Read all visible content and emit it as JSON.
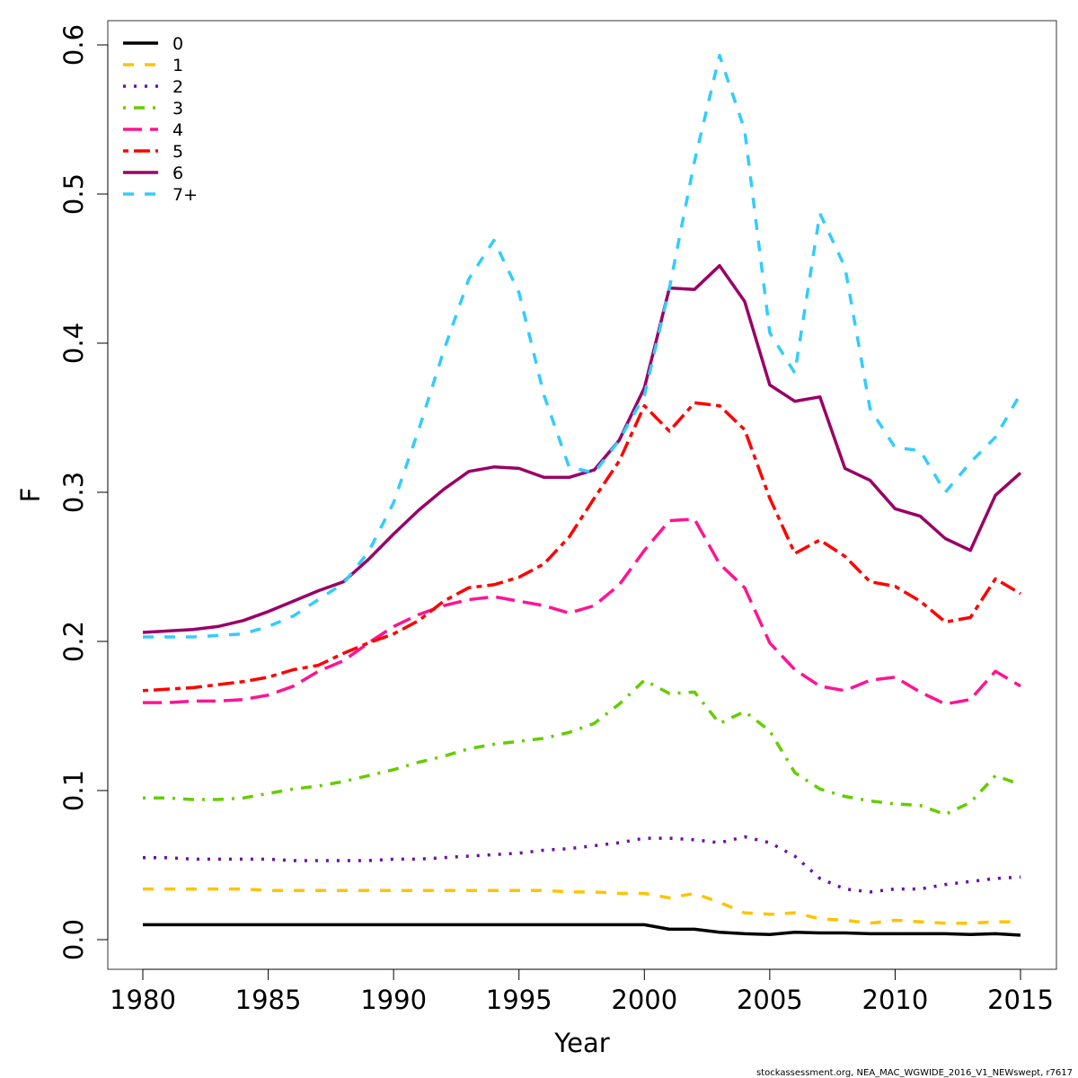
{
  "chart_data": {
    "type": "line",
    "xlabel": "Year",
    "ylabel": "F",
    "xlim": [
      1978.6,
      2016.4
    ],
    "ylim": [
      -0.02,
      0.615
    ],
    "x_ticks": [
      1980,
      1985,
      1990,
      1995,
      2000,
      2005,
      2010,
      2015
    ],
    "y_ticks": [
      0.0,
      0.1,
      0.2,
      0.3,
      0.4,
      0.5,
      0.6
    ],
    "y_tick_labels": [
      "0.0",
      "0.1",
      "0.2",
      "0.3",
      "0.4",
      "0.5",
      "0.6"
    ],
    "legend_position": "top-left",
    "grid": false,
    "x": [
      1980,
      1981,
      1982,
      1983,
      1984,
      1985,
      1986,
      1987,
      1988,
      1989,
      1990,
      1991,
      1992,
      1993,
      1994,
      1995,
      1996,
      1997,
      1998,
      1999,
      2000,
      2001,
      2002,
      2003,
      2004,
      2005,
      2006,
      2007,
      2008,
      2009,
      2010,
      2011,
      2012,
      2013,
      2014,
      2015
    ],
    "series": [
      {
        "name": "0",
        "color": "#000000",
        "dash": "solid",
        "values": [
          0.01,
          0.01,
          0.01,
          0.01,
          0.01,
          0.01,
          0.01,
          0.01,
          0.01,
          0.01,
          0.01,
          0.01,
          0.01,
          0.01,
          0.01,
          0.01,
          0.01,
          0.01,
          0.01,
          0.01,
          0.01,
          0.007,
          0.007,
          0.005,
          0.004,
          0.0035,
          0.005,
          0.0045,
          0.0045,
          0.004,
          0.004,
          0.004,
          0.004,
          0.0035,
          0.004,
          0.003
        ]
      },
      {
        "name": "1",
        "color": "#FFC300",
        "dash": "dashed",
        "values": [
          0.034,
          0.034,
          0.034,
          0.034,
          0.034,
          0.033,
          0.033,
          0.033,
          0.033,
          0.033,
          0.033,
          0.033,
          0.033,
          0.033,
          0.033,
          0.033,
          0.033,
          0.032,
          0.032,
          0.031,
          0.031,
          0.028,
          0.031,
          0.025,
          0.018,
          0.017,
          0.018,
          0.014,
          0.013,
          0.011,
          0.013,
          0.012,
          0.011,
          0.011,
          0.012,
          0.012
        ]
      },
      {
        "name": "2",
        "color": "#6A0DAD",
        "dash": "dotted",
        "values": [
          0.055,
          0.055,
          0.054,
          0.054,
          0.054,
          0.054,
          0.053,
          0.053,
          0.053,
          0.053,
          0.054,
          0.054,
          0.055,
          0.056,
          0.057,
          0.058,
          0.06,
          0.061,
          0.063,
          0.065,
          0.068,
          0.068,
          0.067,
          0.065,
          0.069,
          0.065,
          0.056,
          0.041,
          0.034,
          0.032,
          0.034,
          0.034,
          0.037,
          0.039,
          0.041,
          0.042
        ]
      },
      {
        "name": "3",
        "color": "#66CC00",
        "dash": "dotdash",
        "values": [
          0.095,
          0.095,
          0.094,
          0.094,
          0.095,
          0.098,
          0.101,
          0.103,
          0.106,
          0.11,
          0.114,
          0.119,
          0.123,
          0.128,
          0.131,
          0.133,
          0.135,
          0.139,
          0.145,
          0.158,
          0.174,
          0.165,
          0.166,
          0.145,
          0.153,
          0.14,
          0.112,
          0.101,
          0.096,
          0.093,
          0.091,
          0.09,
          0.084,
          0.092,
          0.11,
          0.104
        ]
      },
      {
        "name": "4",
        "color": "#FF1493",
        "dash": "longdash",
        "values": [
          0.159,
          0.159,
          0.16,
          0.16,
          0.161,
          0.164,
          0.17,
          0.18,
          0.187,
          0.199,
          0.21,
          0.218,
          0.224,
          0.228,
          0.23,
          0.227,
          0.224,
          0.219,
          0.224,
          0.238,
          0.261,
          0.281,
          0.282,
          0.252,
          0.236,
          0.199,
          0.181,
          0.17,
          0.167,
          0.174,
          0.176,
          0.166,
          0.158,
          0.161,
          0.18,
          0.17
        ]
      },
      {
        "name": "5",
        "color": "#FF0000",
        "dash": "twodash",
        "values": [
          0.167,
          0.168,
          0.169,
          0.171,
          0.173,
          0.176,
          0.181,
          0.184,
          0.192,
          0.199,
          0.205,
          0.214,
          0.227,
          0.236,
          0.238,
          0.243,
          0.252,
          0.27,
          0.296,
          0.321,
          0.358,
          0.341,
          0.36,
          0.358,
          0.342,
          0.296,
          0.259,
          0.268,
          0.257,
          0.24,
          0.237,
          0.227,
          0.213,
          0.216,
          0.242,
          0.232
        ]
      },
      {
        "name": "6",
        "color": "#990066",
        "dash": "solid",
        "values": [
          0.206,
          0.207,
          0.208,
          0.21,
          0.214,
          0.22,
          0.227,
          0.234,
          0.24,
          0.255,
          0.272,
          0.288,
          0.302,
          0.314,
          0.317,
          0.316,
          0.31,
          0.31,
          0.315,
          0.335,
          0.37,
          0.437,
          0.436,
          0.452,
          0.428,
          0.372,
          0.361,
          0.364,
          0.316,
          0.308,
          0.289,
          0.284,
          0.269,
          0.261,
          0.298,
          0.313
        ]
      },
      {
        "name": "7+",
        "color": "#33CCFF",
        "dash": "dashed",
        "values": [
          0.203,
          0.203,
          0.203,
          0.204,
          0.205,
          0.21,
          0.217,
          0.228,
          0.239,
          0.26,
          0.293,
          0.342,
          0.395,
          0.443,
          0.469,
          0.434,
          0.365,
          0.317,
          0.313,
          0.335,
          0.365,
          0.437,
          0.522,
          0.593,
          0.543,
          0.407,
          0.38,
          0.487,
          0.451,
          0.356,
          0.33,
          0.328,
          0.3,
          0.32,
          0.337,
          0.366
        ]
      }
    ]
  },
  "footer": "stockassessment.org, NEA_MAC_WGWIDE_2016_V1_NEWswept, r7617"
}
